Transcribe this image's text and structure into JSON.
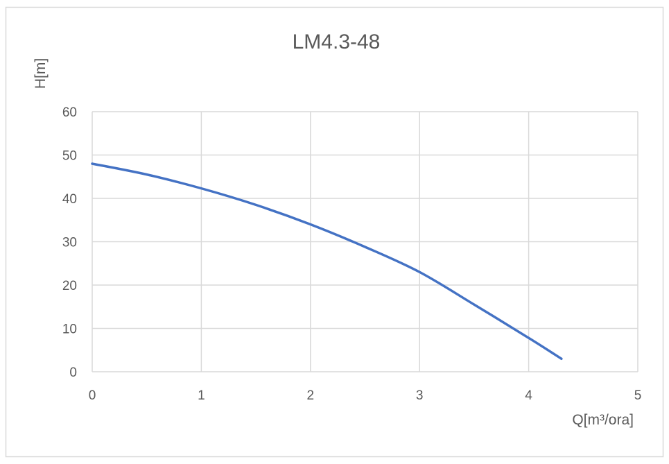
{
  "chart_data": {
    "type": "line",
    "title": "LM4.3-48",
    "xlabel": "Q[m³/ora]",
    "ylabel": "H[m]",
    "xlim": [
      0,
      5
    ],
    "ylim": [
      0,
      60
    ],
    "x_ticks": [
      0,
      1,
      2,
      3,
      4,
      5
    ],
    "y_ticks": [
      0,
      10,
      20,
      30,
      40,
      50,
      60
    ],
    "x_tick_labels": [
      "0",
      "1",
      "2",
      "3",
      "4",
      "5"
    ],
    "y_tick_labels": [
      "0",
      "10",
      "20",
      "30",
      "40",
      "50",
      "60"
    ],
    "grid": true,
    "series": [
      {
        "color": "#4472c4",
        "points": [
          [
            0,
            48
          ],
          [
            0.5,
            45.5
          ],
          [
            1,
            42.3
          ],
          [
            1.5,
            38.5
          ],
          [
            2,
            34
          ],
          [
            2.5,
            28.8
          ],
          [
            3,
            23
          ],
          [
            3.5,
            15.5
          ],
          [
            4,
            7.8
          ],
          [
            4.3,
            3
          ]
        ]
      }
    ]
  },
  "colors": {
    "frame_border": "#d9d9d9",
    "grid": "#d9d9d9",
    "axis_text": "#595959",
    "line": "#4472c4"
  }
}
